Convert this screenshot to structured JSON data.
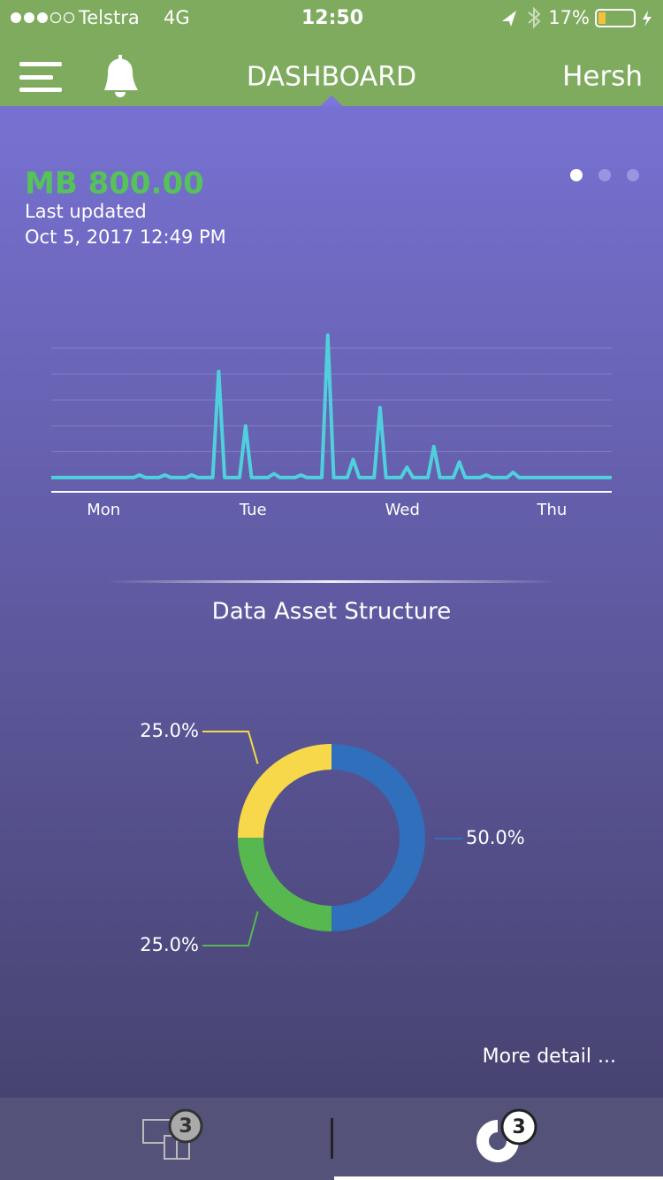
{
  "status_bar": {
    "carrier": "Telstra",
    "network": "4G",
    "time": "12:50",
    "battery": "17%"
  },
  "nav": {
    "title": "DASHBOARD",
    "user": "Hersh"
  },
  "summary": {
    "amount": "MB 800.00",
    "updated_label": "Last updated",
    "updated_time": "Oct 5, 2017 12:49 PM"
  },
  "chart_data": [
    {
      "type": "line",
      "x": [
        -0.35,
        0.2,
        0.24,
        0.28,
        0.37,
        0.41,
        0.45,
        0.55,
        0.59,
        0.63,
        0.73,
        0.77,
        0.81,
        0.91,
        0.95,
        0.99,
        1.1,
        1.14,
        1.18,
        1.28,
        1.32,
        1.36,
        1.46,
        1.5,
        1.54,
        1.63,
        1.67,
        1.71,
        1.81,
        1.85,
        1.89,
        1.99,
        2.03,
        2.07,
        2.17,
        2.21,
        2.25,
        2.34,
        2.38,
        2.42,
        2.52,
        2.56,
        2.6,
        2.7,
        2.74,
        2.78,
        3.4
      ],
      "values": [
        0,
        0,
        0.1,
        0,
        0,
        0.1,
        0,
        0,
        0.1,
        0,
        0,
        4.1,
        0,
        0,
        2.0,
        0,
        0,
        0.15,
        0,
        0,
        0.1,
        0,
        0,
        5.5,
        0,
        0,
        0.7,
        0,
        0,
        2.7,
        0,
        0,
        0.4,
        0,
        0,
        1.2,
        0,
        0,
        0.6,
        0,
        0,
        0.1,
        0,
        0,
        0.2,
        0,
        0
      ],
      "color": "#4fd0dc",
      "xlim": [
        -0.35,
        3.4
      ],
      "xticks": [
        {
          "value": 0,
          "label": "Mon"
        },
        {
          "value": 1,
          "label": "Tue"
        },
        {
          "value": 2,
          "label": "Wed"
        },
        {
          "value": 3,
          "label": "Thu"
        }
      ],
      "ylim": [
        -0.55,
        5.6
      ],
      "yticks": [
        1,
        2,
        3,
        4,
        5
      ],
      "grid": true
    },
    {
      "type": "pie",
      "title": "Data Asset Structure",
      "categories": [
        null,
        null,
        null
      ],
      "values": [
        50,
        25,
        25
      ],
      "value_labels": [
        "50.0%",
        "25.0%",
        "25.0%"
      ],
      "colors": [
        "#2f6fbb",
        "#56b84f",
        "#f6d84a"
      ]
    }
  ],
  "more_link": "More detail ...",
  "tabs": [
    {
      "badge": "3"
    },
    {
      "badge": "3"
    }
  ]
}
